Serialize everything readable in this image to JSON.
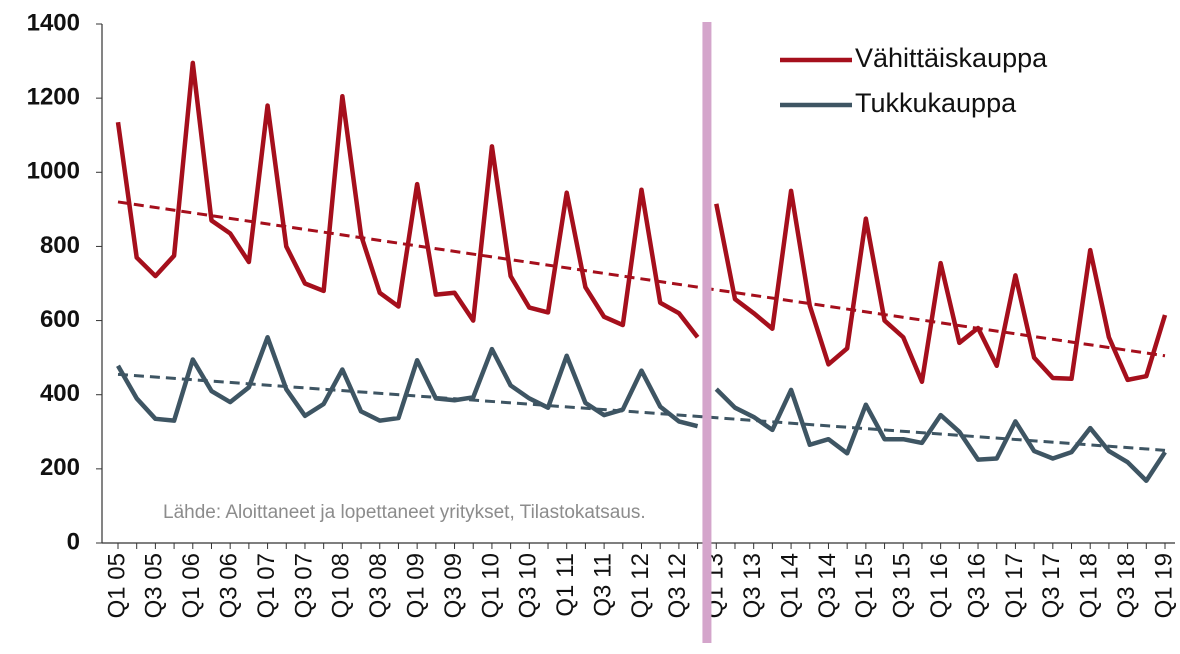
{
  "chart_data": {
    "type": "line",
    "categories": [
      "Q1 05",
      null,
      "Q3 05",
      null,
      "Q1 06",
      null,
      "Q3 06",
      null,
      "Q1 07",
      null,
      "Q3 07",
      null,
      "Q1 08",
      null,
      "Q3 08",
      null,
      "Q1 09",
      null,
      "Q3 09",
      null,
      "Q1 10",
      null,
      "Q3 10",
      null,
      "Q1 11",
      null,
      "Q3 11",
      null,
      "Q1 12",
      null,
      "Q3 12",
      null,
      "Q1 13",
      null,
      "Q3 13",
      null,
      "Q1 14",
      null,
      "Q3 14",
      null,
      "Q1 15",
      null,
      "Q3 15",
      null,
      "Q1 16",
      null,
      "Q3 16",
      null,
      "Q1 17",
      null,
      "Q3 17",
      null,
      "Q1 18",
      null,
      "Q3 18",
      null,
      "Q1 19"
    ],
    "series": [
      {
        "name": "Vähittäiskauppa",
        "color": "#a50f1c",
        "trend": [
          920,
          505
        ],
        "values": [
          1135,
          770,
          720,
          775,
          1295,
          870,
          835,
          758,
          1180,
          800,
          700,
          680,
          1205,
          830,
          675,
          638,
          968,
          670,
          675,
          600,
          1070,
          720,
          635,
          622,
          945,
          690,
          610,
          588,
          953,
          648,
          620,
          555,
          915,
          658,
          620,
          578,
          950,
          640,
          482,
          525,
          875,
          600,
          555,
          435,
          755,
          540,
          580,
          478,
          722,
          500,
          445,
          443,
          790,
          555,
          440,
          450,
          615
        ]
      },
      {
        "name": "Tukkukauppa",
        "color": "#3e5563",
        "trend": [
          455,
          250
        ],
        "values": [
          478,
          390,
          335,
          330,
          495,
          410,
          380,
          420,
          555,
          415,
          343,
          375,
          468,
          355,
          330,
          337,
          493,
          390,
          385,
          393,
          523,
          425,
          390,
          365,
          505,
          378,
          345,
          360,
          465,
          368,
          328,
          315,
          415,
          365,
          340,
          305,
          413,
          265,
          280,
          242,
          373,
          280,
          280,
          270,
          345,
          300,
          225,
          228,
          328,
          248,
          228,
          245,
          310,
          248,
          218,
          168,
          245
        ]
      }
    ],
    "ylim": [
      0,
      1400
    ],
    "yticks": [
      0,
      200,
      400,
      600,
      800,
      1000,
      1200,
      1400
    ],
    "divider": {
      "after_index": 31,
      "color": "#d4a5cb"
    },
    "legend": "top-right",
    "annotation": "Lähde: Aloittaneet ja lopettaneet yritykset, Tilastokatsaus."
  }
}
